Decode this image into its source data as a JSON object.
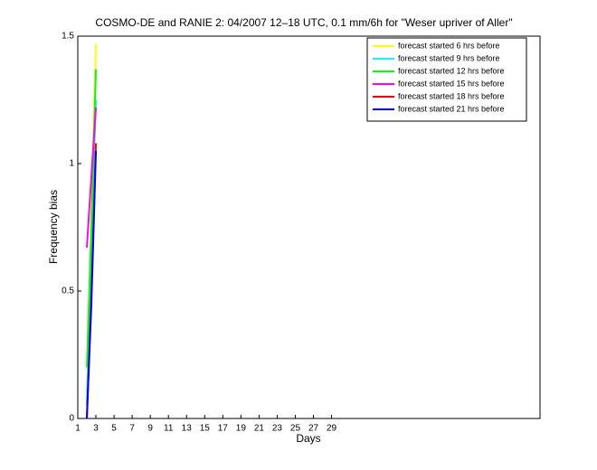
{
  "chart_data": {
    "type": "line",
    "title": "COSMO-DE and RANIE 2: 04/2007 12–18 UTC, 0.1 mm/6h for \"Weser upriver of Aller\"",
    "xlabel": "Days",
    "ylabel": "Frequency bias",
    "xlim": [
      1,
      52
    ],
    "xticks": [
      1,
      3,
      5,
      7,
      9,
      11,
      13,
      15,
      17,
      19,
      21,
      23,
      25,
      27,
      29
    ],
    "ylim": [
      0,
      1.5
    ],
    "yticks": [
      0,
      0.5,
      1,
      1.5
    ],
    "x": [
      2,
      2.5,
      3
    ],
    "series": [
      {
        "name": "forecast started 6 hrs before",
        "color": "#ffff00",
        "values": [
          0.1,
          0.8,
          1.47
        ]
      },
      {
        "name": "forecast started 9 hrs before",
        "color": "#00ffff",
        "values": [
          0.05,
          0.7,
          1.25
        ]
      },
      {
        "name": "forecast started 12 hrs before",
        "color": "#00ff00",
        "values": [
          0.2,
          0.75,
          1.37
        ]
      },
      {
        "name": "forecast started 15 hrs before",
        "color": "#ff00ff",
        "values": [
          0.67,
          0.95,
          1.22
        ]
      },
      {
        "name": "forecast started 18 hrs before",
        "color": "#ff0000",
        "values": [
          0.0,
          0.5,
          1.08
        ]
      },
      {
        "name": "forecast started 21 hrs before",
        "color": "#0000ff",
        "values": [
          0.0,
          0.45,
          1.05
        ]
      }
    ]
  }
}
